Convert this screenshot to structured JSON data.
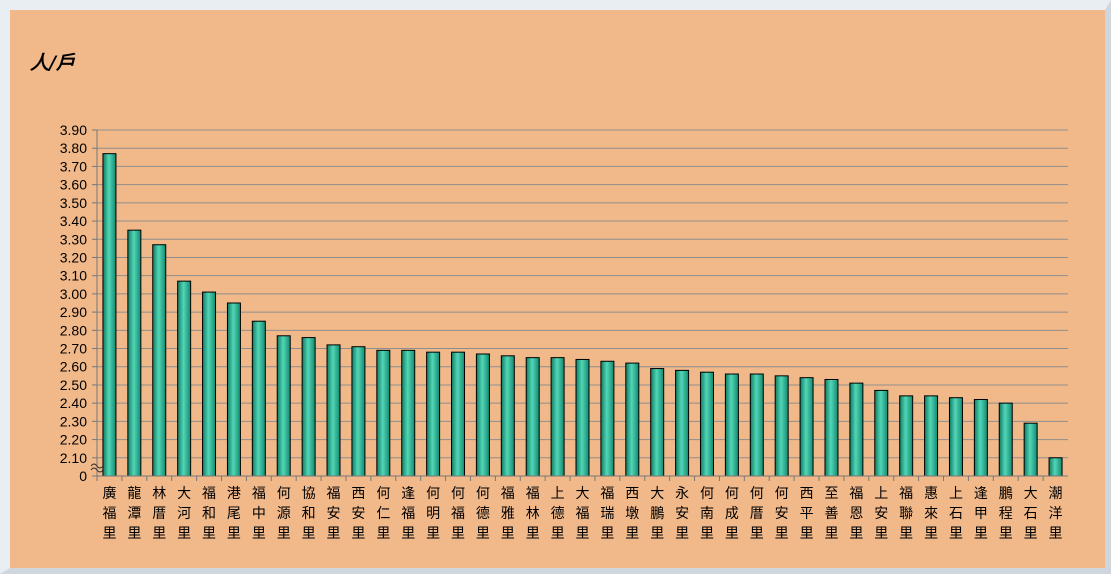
{
  "chart_data": {
    "type": "bar",
    "ylabel": "人/戶",
    "ylim": [
      2.0,
      3.9
    ],
    "y_axis_break": true,
    "yticks": [
      "3.90",
      "3.80",
      "3.70",
      "3.60",
      "3.50",
      "3.40",
      "3.30",
      "3.20",
      "3.10",
      "3.00",
      "2.90",
      "2.80",
      "2.70",
      "2.60",
      "2.50",
      "2.40",
      "2.30",
      "2.20",
      "2.10",
      "0"
    ],
    "grid": true,
    "legend": "none",
    "categories": [
      "廣福里",
      "龍潭里",
      "林厝里",
      "大河里",
      "福和里",
      "港尾里",
      "福中里",
      "何源里",
      "協和里",
      "福安里",
      "西安里",
      "何仁里",
      "逢福里",
      "何明里",
      "何福里",
      "何德里",
      "福雅里",
      "福林里",
      "上德里",
      "大福里",
      "福瑞里",
      "西墩里",
      "大鵬里",
      "永安里",
      "何南里",
      "何成里",
      "何厝里",
      "何安里",
      "西平里",
      "至善里",
      "福恩里",
      "上安里",
      "福聯里",
      "惠來里",
      "上石里",
      "逢甲里",
      "鵬程里",
      "大石里",
      "潮洋里"
    ],
    "values": [
      3.77,
      3.35,
      3.27,
      3.07,
      3.01,
      2.95,
      2.85,
      2.77,
      2.76,
      2.72,
      2.71,
      2.69,
      2.69,
      2.68,
      2.68,
      2.67,
      2.66,
      2.65,
      2.65,
      2.64,
      2.63,
      2.62,
      2.59,
      2.58,
      2.57,
      2.56,
      2.56,
      2.55,
      2.54,
      2.53,
      2.51,
      2.47,
      2.44,
      2.44,
      2.43,
      2.42,
      2.4,
      2.29,
      2.1
    ],
    "colors": {
      "bar_fill": "#1fa88a",
      "bar_edge": "#000000",
      "grid": "#8e8e8e",
      "background": "#f1b98a"
    }
  }
}
